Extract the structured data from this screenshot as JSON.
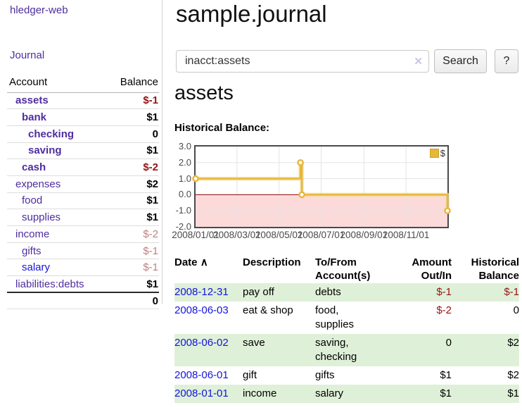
{
  "sidebar": {
    "brand": "hledger-web",
    "journal_link": "Journal",
    "account_header": "Account",
    "balance_header": "Balance",
    "accounts": [
      {
        "name": "assets",
        "balance": "$-1"
      },
      {
        "name": "bank",
        "balance": "$1"
      },
      {
        "name": "checking",
        "balance": "0"
      },
      {
        "name": "saving",
        "balance": "$1"
      },
      {
        "name": "cash",
        "balance": "$-2"
      },
      {
        "name": "expenses",
        "balance": "$2"
      },
      {
        "name": "food",
        "balance": "$1"
      },
      {
        "name": "supplies",
        "balance": "$1"
      },
      {
        "name": "income",
        "balance": "$-2"
      },
      {
        "name": "gifts",
        "balance": "$-1"
      },
      {
        "name": "salary",
        "balance": "$-1"
      },
      {
        "name": "liabilities:debts",
        "balance": "$1"
      }
    ],
    "total": "0"
  },
  "main": {
    "title": "sample.journal",
    "search": {
      "value": "inacct:assets",
      "clear_icon": "✕",
      "search_button": "Search",
      "help_button": "?"
    },
    "account_title": "assets",
    "chart_label": "Historical Balance:"
  },
  "chart_data": {
    "type": "line",
    "style": "step-after",
    "title": "Historical Balance",
    "series": [
      {
        "name": "$",
        "color": "#e8b738",
        "points": [
          [
            "2008-01-01",
            1
          ],
          [
            "2008-06-01",
            2
          ],
          [
            "2008-06-03",
            0
          ],
          [
            "2008-12-31",
            -1
          ]
        ]
      }
    ],
    "x_range": [
      "2008-01-01",
      "2008-12-31"
    ],
    "ylim": [
      -2,
      3
    ],
    "y_ticks": [
      "3.0",
      "2.0",
      "1.0",
      "0.0",
      "-1.0",
      "-2.0"
    ],
    "x_ticks": [
      "2008/01/01",
      "2008/03/01",
      "2008/05/01",
      "2008/07/01",
      "2008/09/01",
      "2008/11/01"
    ],
    "legend": "$",
    "legend_position": "top-right",
    "grid": true,
    "negative_region_color": "#fcdada",
    "zero_line_color": "#8b0000"
  },
  "register": {
    "headers": {
      "date": "Date",
      "sort_indicator": "∧",
      "description": "Description",
      "tofrom_line1": "To/From",
      "tofrom_line2": "Account(s)",
      "amount_line1": "Amount",
      "amount_line2": "Out/In",
      "hist_line1": "Historical",
      "hist_line2": "Balance"
    },
    "rows": [
      {
        "date": "2008-12-31",
        "description": "pay off",
        "accounts": "debts",
        "amount": "$-1",
        "balance": "$-1"
      },
      {
        "date": "2008-06-03",
        "description": "eat & shop",
        "accounts": "food, supplies",
        "amount": "$-2",
        "balance": "0"
      },
      {
        "date": "2008-06-02",
        "description": "save",
        "accounts": "saving, checking",
        "amount": "0",
        "balance": "$2"
      },
      {
        "date": "2008-06-01",
        "description": "gift",
        "accounts": "gifts",
        "amount": "$1",
        "balance": "$2"
      },
      {
        "date": "2008-01-01",
        "description": "income",
        "accounts": "salary",
        "amount": "$1",
        "balance": "$1"
      }
    ]
  }
}
